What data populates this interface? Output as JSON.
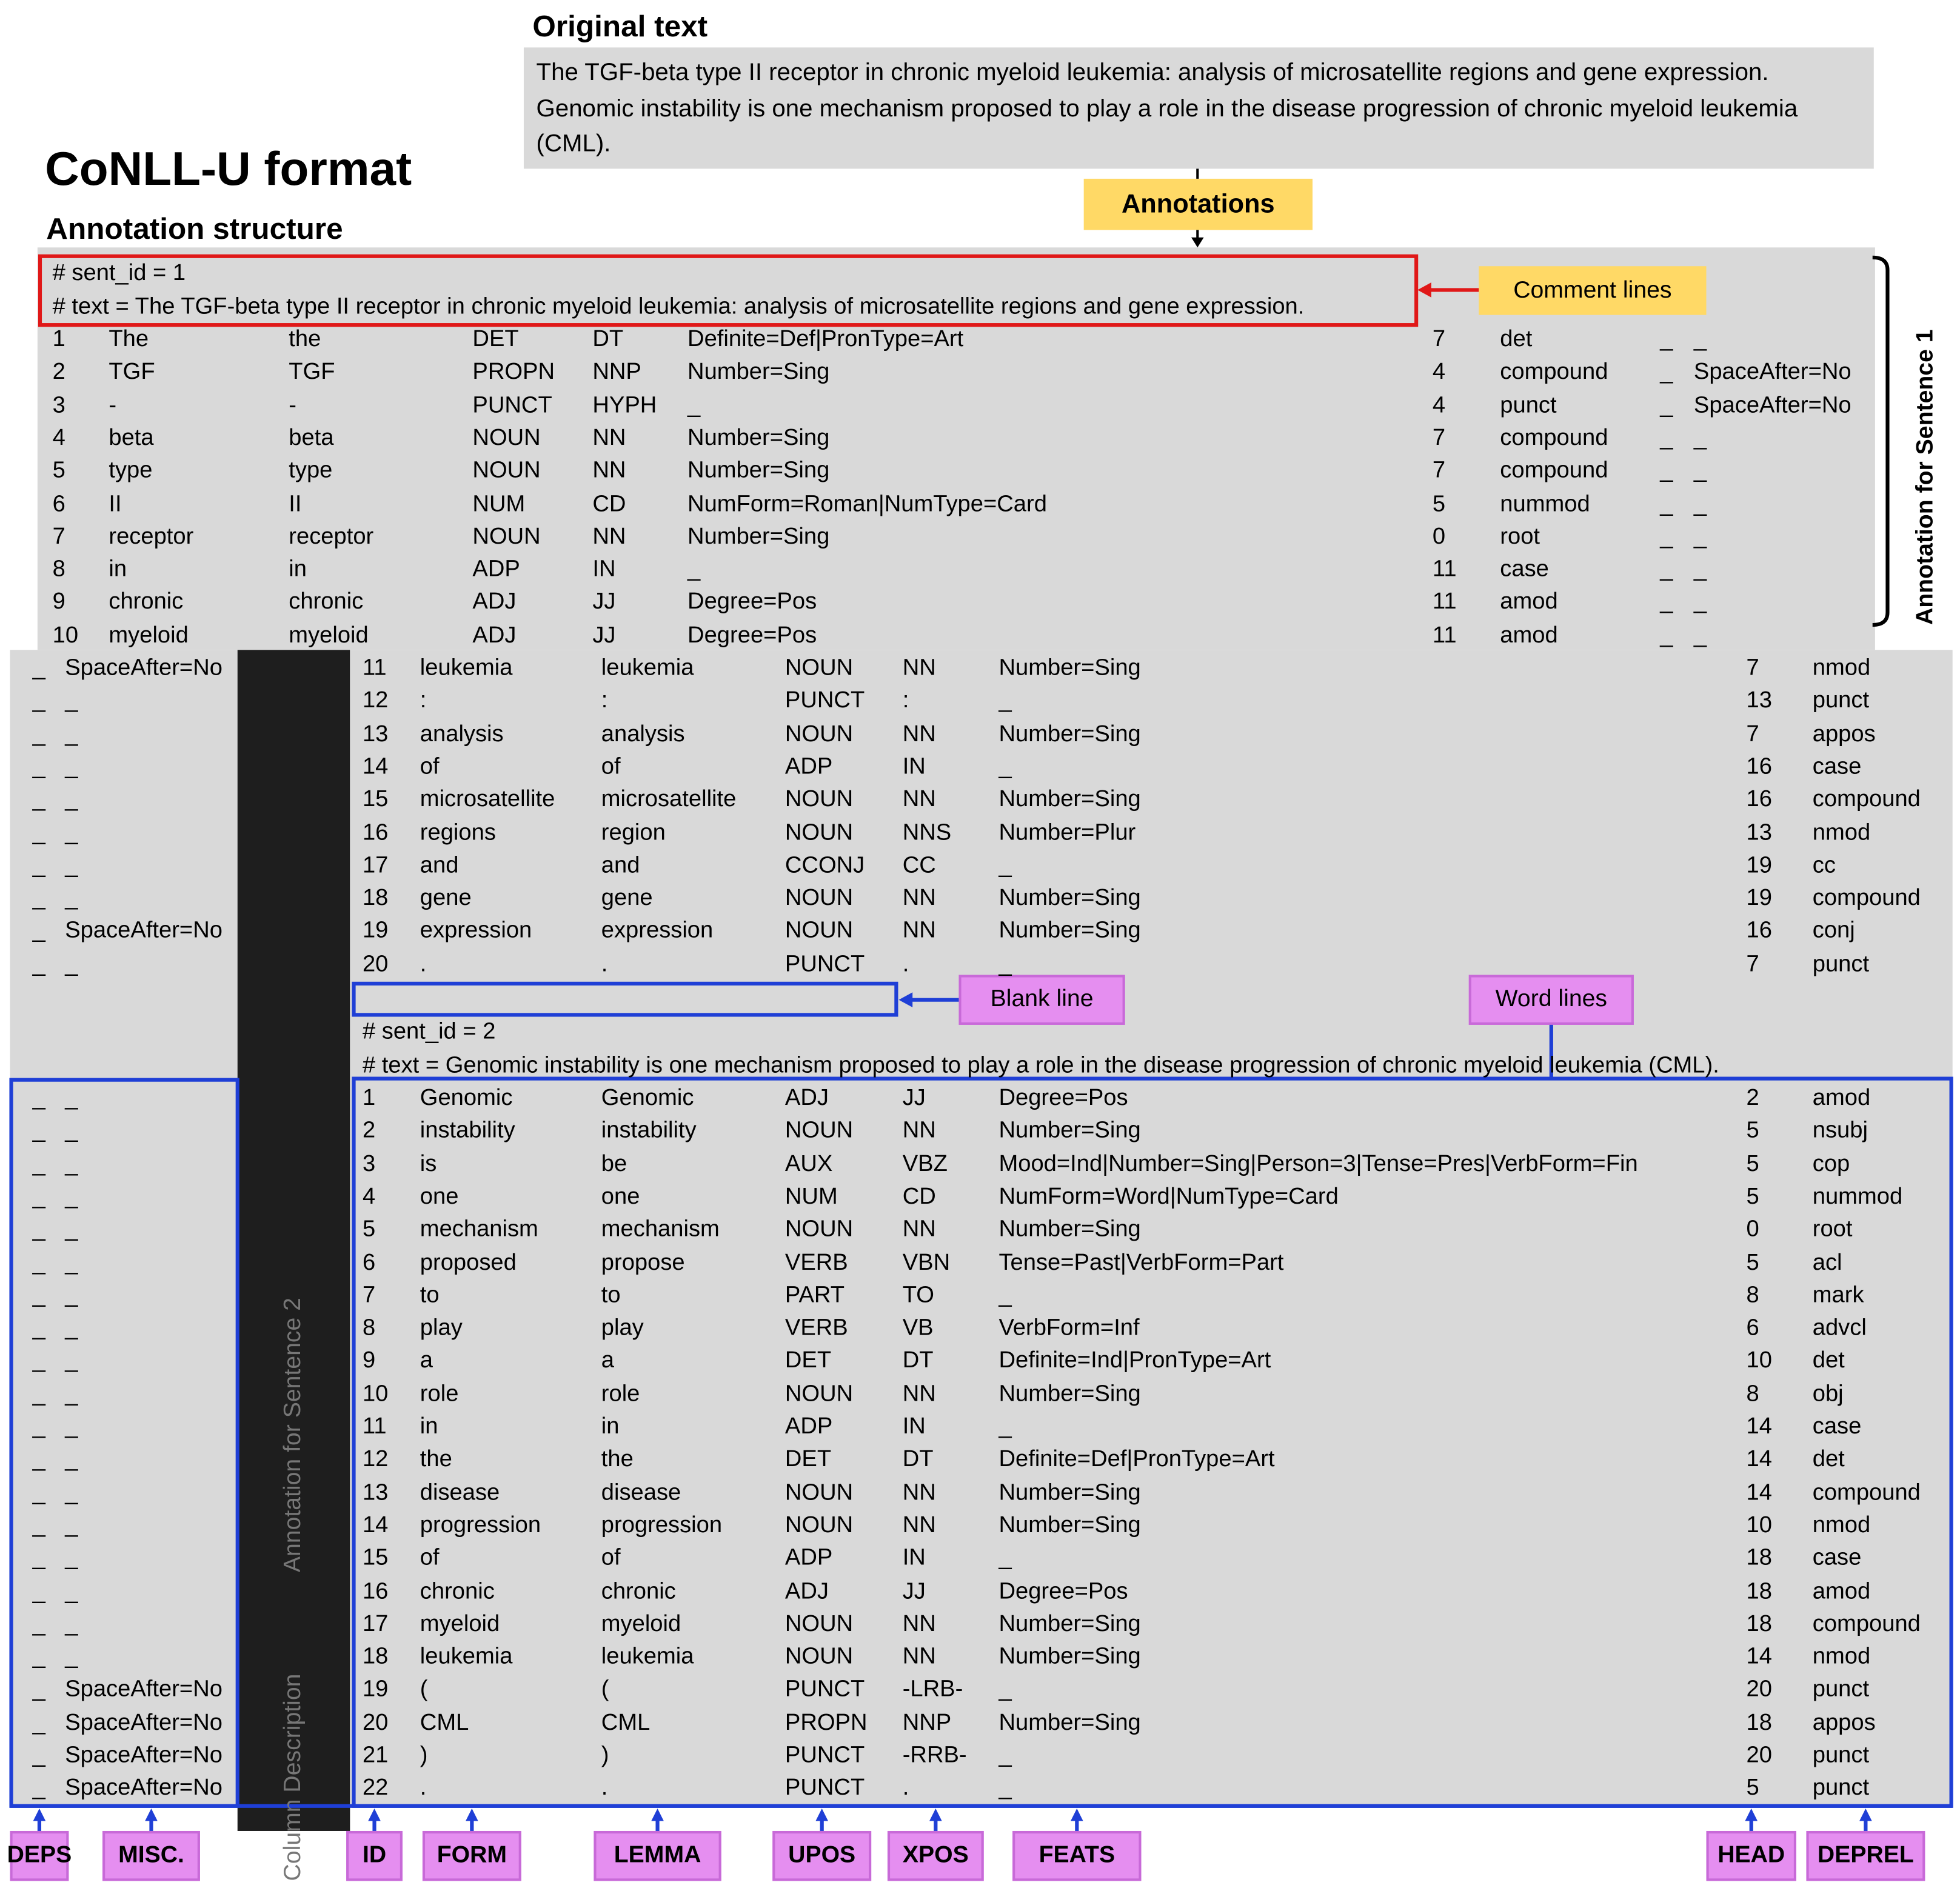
{
  "header": {
    "title": "CoNLL-U format",
    "subtitle": "Annotation structure"
  },
  "original_text": {
    "label": "Original text",
    "text": "The TGF-beta type II receptor in chronic myeloid leukemia: analysis of microsatellite regions and gene expression. Genomic instability is one mechanism proposed to play a role in the disease progression of chronic myeloid leukemia (CML)."
  },
  "callouts": {
    "annotations": "Annotations",
    "comment_lines": "Comment lines",
    "blank_line": "Blank line",
    "word_lines": "Word lines",
    "sentence_1": "Annotation for Sentence 1",
    "sentence_2": "Annotation for Sentence 2",
    "column_description": "Column Description"
  },
  "column_labels": [
    "DEPS",
    "MISC.",
    "ID",
    "FORM",
    "LEMMA",
    "UPOS",
    "XPOS",
    "FEATS",
    "HEAD",
    "DEPREL"
  ],
  "sentences": [
    {
      "comments": [
        "# sent_id = 1",
        "# text = The TGF-beta type II receptor in chronic myeloid leukemia: analysis of microsatellite regions and gene expression."
      ],
      "tokens": [
        [
          "1",
          "The",
          "the",
          "DET",
          "DT",
          "Definite=Def|PronType=Art",
          "7",
          "det",
          "_",
          "_"
        ],
        [
          "2",
          "TGF",
          "TGF",
          "PROPN",
          "NNP",
          "Number=Sing",
          "4",
          "compound",
          "_",
          "SpaceAfter=No"
        ],
        [
          "3",
          "-",
          "-",
          "PUNCT",
          "HYPH",
          "_",
          "4",
          "punct",
          "_",
          "SpaceAfter=No"
        ],
        [
          "4",
          "beta",
          "beta",
          "NOUN",
          "NN",
          "Number=Sing",
          "7",
          "compound",
          "_",
          "_"
        ],
        [
          "5",
          "type",
          "type",
          "NOUN",
          "NN",
          "Number=Sing",
          "7",
          "compound",
          "_",
          "_"
        ],
        [
          "6",
          "II",
          "II",
          "NUM",
          "CD",
          "NumForm=Roman|NumType=Card",
          "5",
          "nummod",
          "_",
          "_"
        ],
        [
          "7",
          "receptor",
          "receptor",
          "NOUN",
          "NN",
          "Number=Sing",
          "0",
          "root",
          "_",
          "_"
        ],
        [
          "8",
          "in",
          "in",
          "ADP",
          "IN",
          "_",
          "11",
          "case",
          "_",
          "_"
        ],
        [
          "9",
          "chronic",
          "chronic",
          "ADJ",
          "JJ",
          "Degree=Pos",
          "11",
          "amod",
          "_",
          "_"
        ],
        [
          "10",
          "myeloid",
          "myeloid",
          "ADJ",
          "JJ",
          "Degree=Pos",
          "11",
          "amod",
          "_",
          "_"
        ],
        [
          "11",
          "leukemia",
          "leukemia",
          "NOUN",
          "NN",
          "Number=Sing",
          "7",
          "nmod",
          "_",
          "SpaceAfter=No"
        ],
        [
          "12",
          ":",
          ":",
          "PUNCT",
          ":",
          "_",
          "13",
          "punct",
          "_",
          "_"
        ],
        [
          "13",
          "analysis",
          "analysis",
          "NOUN",
          "NN",
          "Number=Sing",
          "7",
          "appos",
          "_",
          "_"
        ],
        [
          "14",
          "of",
          "of",
          "ADP",
          "IN",
          "_",
          "16",
          "case",
          "_",
          "_"
        ],
        [
          "15",
          "microsatellite",
          "microsatellite",
          "NOUN",
          "NN",
          "Number=Sing",
          "16",
          "compound",
          "_",
          "_"
        ],
        [
          "16",
          "regions",
          "region",
          "NOUN",
          "NNS",
          "Number=Plur",
          "13",
          "nmod",
          "_",
          "_"
        ],
        [
          "17",
          "and",
          "and",
          "CCONJ",
          "CC",
          "_",
          "19",
          "cc",
          "_",
          "_"
        ],
        [
          "18",
          "gene",
          "gene",
          "NOUN",
          "NN",
          "Number=Sing",
          "19",
          "compound",
          "_",
          "_"
        ],
        [
          "19",
          "expression",
          "expression",
          "NOUN",
          "NN",
          "Number=Sing",
          "16",
          "conj",
          "_",
          "SpaceAfter=No"
        ],
        [
          "20",
          ".",
          ".",
          "PUNCT",
          ".",
          "_",
          "7",
          "punct",
          "_",
          "_"
        ]
      ]
    },
    {
      "comments": [
        "# sent_id = 2",
        "# text = Genomic instability is one mechanism proposed to play a role in the disease progression of chronic myeloid leukemia (CML)."
      ],
      "tokens": [
        [
          "1",
          "Genomic",
          "Genomic",
          "ADJ",
          "JJ",
          "Degree=Pos",
          "2",
          "amod",
          "_",
          "_"
        ],
        [
          "2",
          "instability",
          "instability",
          "NOUN",
          "NN",
          "Number=Sing",
          "5",
          "nsubj",
          "_",
          "_"
        ],
        [
          "3",
          "is",
          "be",
          "AUX",
          "VBZ",
          "Mood=Ind|Number=Sing|Person=3|Tense=Pres|VerbForm=Fin",
          "5",
          "cop",
          "_",
          "_"
        ],
        [
          "4",
          "one",
          "one",
          "NUM",
          "CD",
          "NumForm=Word|NumType=Card",
          "5",
          "nummod",
          "_",
          "_"
        ],
        [
          "5",
          "mechanism",
          "mechanism",
          "NOUN",
          "NN",
          "Number=Sing",
          "0",
          "root",
          "_",
          "_"
        ],
        [
          "6",
          "proposed",
          "propose",
          "VERB",
          "VBN",
          "Tense=Past|VerbForm=Part",
          "5",
          "acl",
          "_",
          "_"
        ],
        [
          "7",
          "to",
          "to",
          "PART",
          "TO",
          "_",
          "8",
          "mark",
          "_",
          "_"
        ],
        [
          "8",
          "play",
          "play",
          "VERB",
          "VB",
          "VerbForm=Inf",
          "6",
          "advcl",
          "_",
          "_"
        ],
        [
          "9",
          "a",
          "a",
          "DET",
          "DT",
          "Definite=Ind|PronType=Art",
          "10",
          "det",
          "_",
          "_"
        ],
        [
          "10",
          "role",
          "role",
          "NOUN",
          "NN",
          "Number=Sing",
          "8",
          "obj",
          "_",
          "_"
        ],
        [
          "11",
          "in",
          "in",
          "ADP",
          "IN",
          "_",
          "14",
          "case",
          "_",
          "_"
        ],
        [
          "12",
          "the",
          "the",
          "DET",
          "DT",
          "Definite=Def|PronType=Art",
          "14",
          "det",
          "_",
          "_"
        ],
        [
          "13",
          "disease",
          "disease",
          "NOUN",
          "NN",
          "Number=Sing",
          "14",
          "compound",
          "_",
          "_"
        ],
        [
          "14",
          "progression",
          "progression",
          "NOUN",
          "NN",
          "Number=Sing",
          "10",
          "nmod",
          "_",
          "_"
        ],
        [
          "15",
          "of",
          "of",
          "ADP",
          "IN",
          "_",
          "18",
          "case",
          "_",
          "_"
        ],
        [
          "16",
          "chronic",
          "chronic",
          "ADJ",
          "JJ",
          "Degree=Pos",
          "18",
          "amod",
          "_",
          "_"
        ],
        [
          "17",
          "myeloid",
          "myeloid",
          "NOUN",
          "NN",
          "Number=Sing",
          "18",
          "compound",
          "_",
          "_"
        ],
        [
          "18",
          "leukemia",
          "leukemia",
          "NOUN",
          "NN",
          "Number=Sing",
          "14",
          "nmod",
          "_",
          "_"
        ],
        [
          "19",
          "(",
          "(",
          "PUNCT",
          "-LRB-",
          "_",
          "20",
          "punct",
          "_",
          "SpaceAfter=No"
        ],
        [
          "20",
          "CML",
          "CML",
          "PROPN",
          "NNP",
          "Number=Sing",
          "18",
          "appos",
          "_",
          "SpaceAfter=No"
        ],
        [
          "21",
          ")",
          ")",
          "PUNCT",
          "-RRB-",
          "_",
          "20",
          "punct",
          "_",
          "SpaceAfter=No"
        ],
        [
          "22",
          ".",
          ".",
          "PUNCT",
          ".",
          "_",
          "5",
          "punct",
          "_",
          "SpaceAfter=No"
        ]
      ]
    }
  ]
}
